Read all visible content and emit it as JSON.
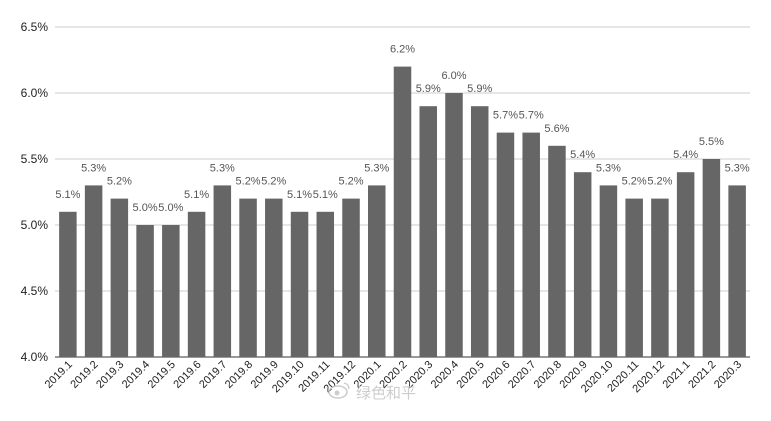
{
  "chart_data": {
    "type": "bar",
    "title": "",
    "xlabel": "",
    "ylabel": "",
    "ylim": [
      4.0,
      6.5
    ],
    "yticks": [
      4.0,
      4.5,
      5.0,
      5.5,
      6.0,
      6.5
    ],
    "ytick_labels": [
      "4.0%",
      "4.5%",
      "5.0%",
      "5.5%",
      "6.0%",
      "6.5%"
    ],
    "grid": true,
    "legend": "none",
    "bar_color": "#666666",
    "categories": [
      "2019.1",
      "2019.2",
      "2019.3",
      "2019.4",
      "2019.5",
      "2019.6",
      "2019.7",
      "2019.8",
      "2019.9",
      "2019.10",
      "2019.11",
      "2019.12",
      "2020.1",
      "2020.2",
      "2020.3",
      "2020.4",
      "2020.5",
      "2020.6",
      "2020.7",
      "2020.8",
      "2020.9",
      "2020.10",
      "2020.11",
      "2020.12",
      "2021.1",
      "2021.2",
      "2020.3"
    ],
    "values": [
      5.1,
      5.3,
      5.2,
      5.0,
      5.0,
      5.1,
      5.3,
      5.2,
      5.2,
      5.1,
      5.1,
      5.2,
      5.3,
      6.2,
      5.9,
      6.0,
      5.9,
      5.7,
      5.7,
      5.6,
      5.4,
      5.3,
      5.2,
      5.2,
      5.4,
      5.5,
      5.3
    ],
    "data_labels": [
      "5.1%",
      "5.3%",
      "5.2%",
      "5.0%",
      "5.0%",
      "5.1%",
      "5.3%",
      "5.2%",
      "5.2%",
      "5.1%",
      "5.1%",
      "5.2%",
      "5.3%",
      "6.2%",
      "5.9%",
      "6.0%",
      "5.9%",
      "5.7%",
      "5.7%",
      "5.6%",
      "5.4%",
      "5.3%",
      "5.2%",
      "5.2%",
      "5.4%",
      "5.5%",
      "5.3%"
    ]
  },
  "watermark": {
    "text": "绿色和平",
    "icon": "weibo-logo"
  }
}
